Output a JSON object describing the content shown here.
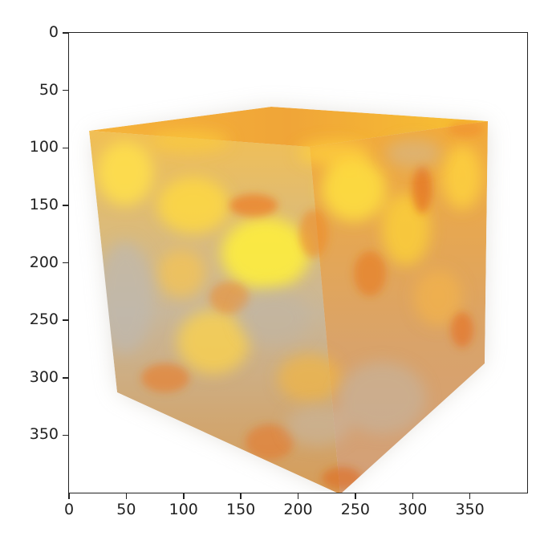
{
  "image": {
    "description_kind": "volume-rendered-cube",
    "colors": {
      "bright": "#fff03a",
      "mid": "#f4a632",
      "deep": "#e86a1c",
      "haze": "#b9b3aa",
      "background": "#ffffff"
    }
  },
  "axes": {
    "x": {
      "range": [
        0,
        400
      ],
      "ticks": [
        "0",
        "50",
        "100",
        "150",
        "200",
        "250",
        "300",
        "350"
      ]
    },
    "y": {
      "range": [
        0,
        400
      ],
      "inverted": true,
      "ticks": [
        "0",
        "50",
        "100",
        "150",
        "200",
        "250",
        "300",
        "350"
      ]
    }
  }
}
